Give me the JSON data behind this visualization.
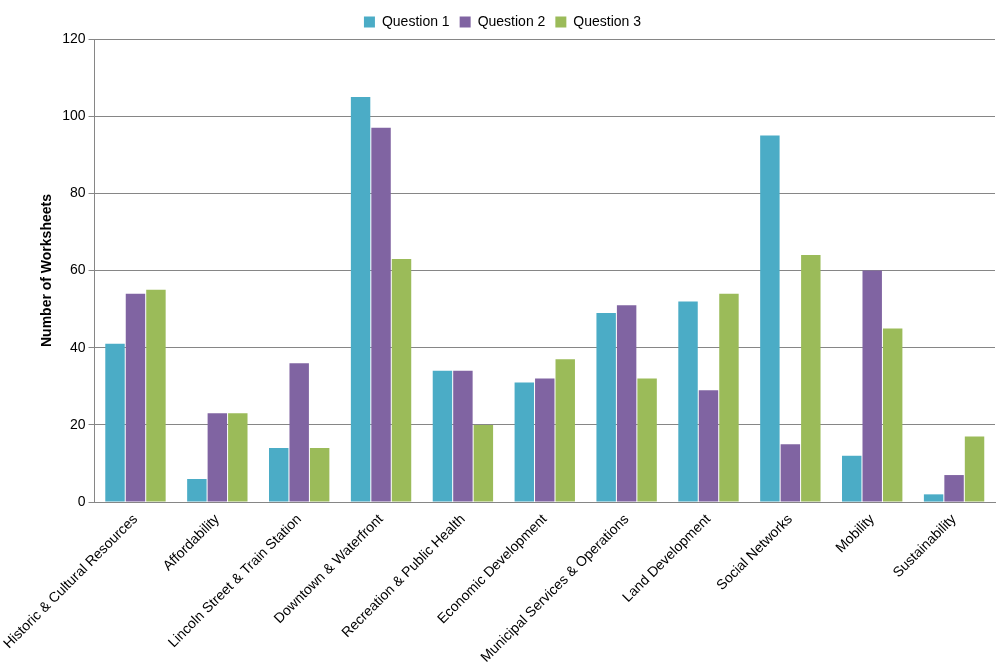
{
  "chart_data": {
    "type": "bar",
    "ylabel": "Number of Worksheets",
    "categories": [
      "Historic & Cultural Resources",
      "Affordability",
      "Lincoln Street & Train Station",
      "Downtown & Waterfront",
      "Recreation & Public Health",
      "Economic Development",
      "Municipal Services & Operations",
      "Land Development",
      "Social Networks",
      "Mobility",
      "Sustainability"
    ],
    "series": [
      {
        "name": "Question 1",
        "color": "#4bacc6",
        "values": [
          41,
          6,
          14,
          105,
          34,
          31,
          49,
          52,
          95,
          12,
          2
        ]
      },
      {
        "name": "Question 2",
        "color": "#8064a2",
        "values": [
          54,
          23,
          36,
          97,
          34,
          32,
          51,
          29,
          15,
          60,
          7
        ]
      },
      {
        "name": "Question 3",
        "color": "#9bbb59",
        "values": [
          55,
          23,
          14,
          63,
          20,
          37,
          32,
          54,
          64,
          45,
          17
        ]
      }
    ],
    "ylim": [
      0,
      120
    ],
    "yticks": [
      0,
      20,
      40,
      60,
      80,
      100,
      120
    ],
    "grid": "y",
    "legend": "top"
  }
}
